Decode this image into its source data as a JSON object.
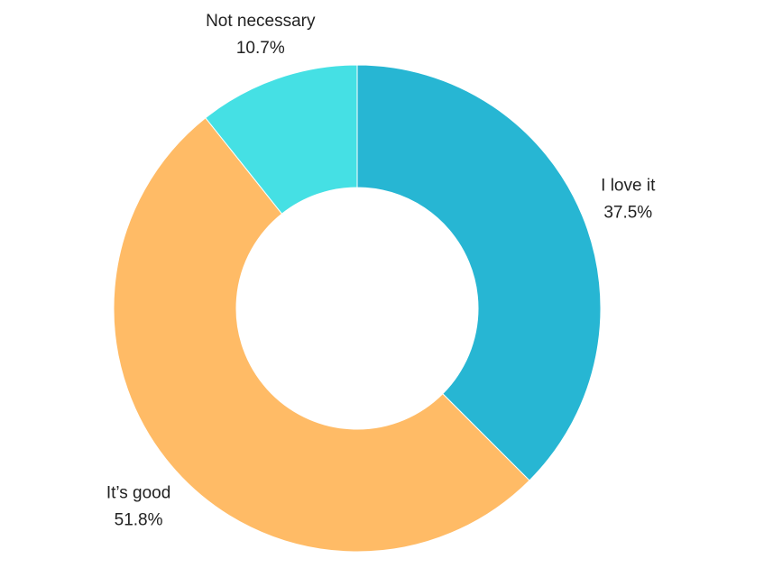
{
  "chart_data": {
    "type": "pie",
    "variant": "donut",
    "start_angle": "12 o'clock, clockwise",
    "slices": [
      {
        "label": "I love it",
        "value": 37.5,
        "value_label": "37.5%",
        "color": "#27b6d3"
      },
      {
        "label": "It’s good",
        "value": 51.8,
        "value_label": "51.8%",
        "color": "#ffbb66"
      },
      {
        "label": "Not necessary",
        "value": 10.7,
        "value_label": "10.7%",
        "color": "#45e0e4"
      }
    ]
  }
}
